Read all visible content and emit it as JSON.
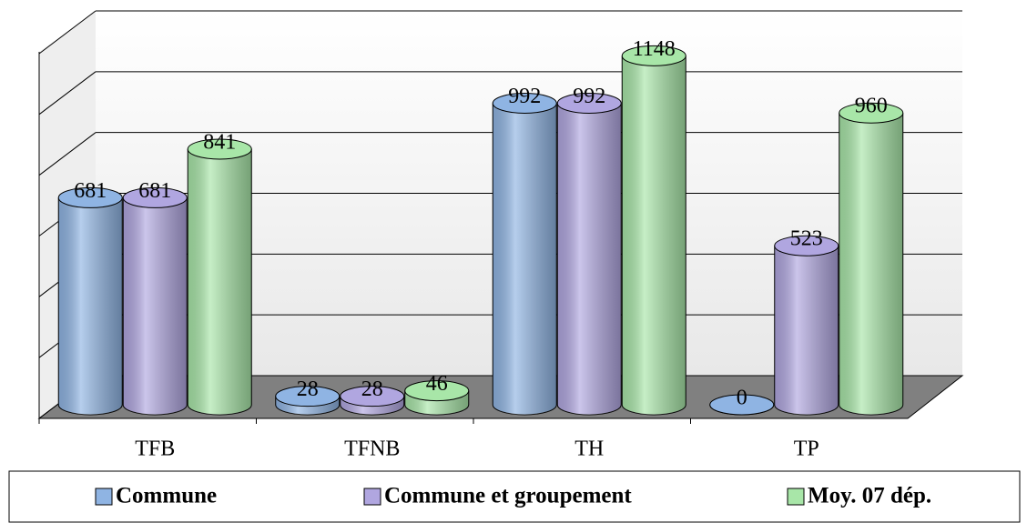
{
  "chart_data": {
    "type": "bar3d",
    "categories": [
      "TFB",
      "TFNB",
      "TH",
      "TP"
    ],
    "series": [
      {
        "name": "Commune",
        "color": "#8fb4e3",
        "values": [
          681,
          28,
          992,
          0
        ]
      },
      {
        "name": "Commune et groupement",
        "color": "#b0a6e0",
        "values": [
          681,
          28,
          992,
          523
        ]
      },
      {
        "name": "Moy. 07 dép.",
        "color": "#a8e6a8",
        "values": [
          841,
          46,
          1148,
          960
        ]
      }
    ],
    "ylim": [
      0,
      1200
    ],
    "yticks": [
      0,
      200,
      400,
      600,
      800,
      1000,
      1200
    ],
    "grid": true,
    "legend": "bottom"
  }
}
